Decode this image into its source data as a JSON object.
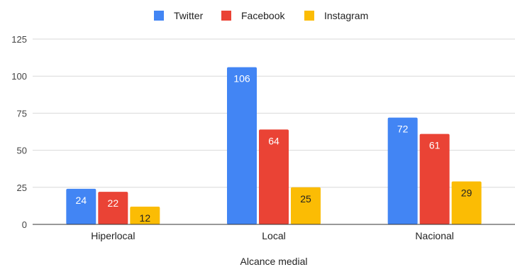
{
  "chart_data": {
    "type": "bar",
    "title": "",
    "xlabel": "Alcance medial",
    "ylabel": "",
    "categories": [
      "Hiperlocal",
      "Local",
      "Nacional"
    ],
    "series": [
      {
        "name": "Twitter",
        "values": [
          24,
          106,
          72
        ],
        "color": "#4285F4",
        "label_color": "#ffffff"
      },
      {
        "name": "Facebook",
        "values": [
          22,
          64,
          61
        ],
        "color": "#EA4335",
        "label_color": "#ffffff"
      },
      {
        "name": "Instagram",
        "values": [
          12,
          25,
          29
        ],
        "color": "#FBBC04",
        "label_color": "#222222"
      }
    ],
    "ylim": [
      0,
      125
    ],
    "yticks": [
      0,
      25,
      50,
      75,
      100,
      125
    ],
    "grid": true,
    "legend_position": "top-center"
  }
}
